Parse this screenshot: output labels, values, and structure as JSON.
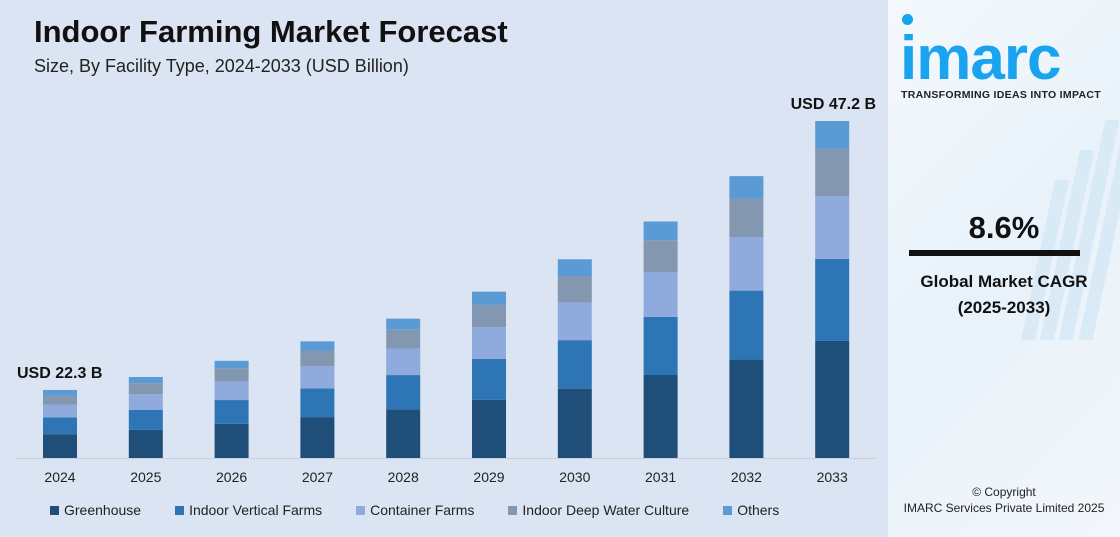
{
  "header": {
    "title": "Indoor Farming Market Forecast",
    "subtitle": "Size, By Facility Type, 2024-2033 (USD Billion)"
  },
  "chart_data": {
    "type": "bar",
    "stacked": true,
    "title": "Indoor Farming Market Forecast",
    "subtitle": "Size, By Facility Type, 2024-2033 (USD Billion)",
    "categories": [
      "2024",
      "2025",
      "2026",
      "2027",
      "2028",
      "2029",
      "2030",
      "2031",
      "2032",
      "2033"
    ],
    "series": [
      {
        "name": "Greenhouse",
        "color": "#1f4e79",
        "values": [
          7.8,
          8.2,
          8.8,
          9.4,
          10.1,
          11.0,
          12.0,
          13.3,
          14.7,
          16.4
        ]
      },
      {
        "name": "Indoor Vertical Farms",
        "color": "#2e75b6",
        "values": [
          5.5,
          5.8,
          6.1,
          6.6,
          7.1,
          7.7,
          8.4,
          9.3,
          10.3,
          11.5
        ]
      },
      {
        "name": "Container Farms",
        "color": "#8faadc",
        "values": [
          4.2,
          4.5,
          4.8,
          5.1,
          5.5,
          6.0,
          6.5,
          7.2,
          8.0,
          8.8
        ]
      },
      {
        "name": "Indoor Deep Water Culture",
        "color": "#8497b0",
        "values": [
          3.0,
          3.2,
          3.4,
          3.6,
          3.9,
          4.2,
          4.6,
          5.1,
          5.7,
          6.6
        ]
      },
      {
        "name": "Others",
        "color": "#5b9bd5",
        "values": [
          1.8,
          1.8,
          1.9,
          2.1,
          2.3,
          2.5,
          2.9,
          3.0,
          3.4,
          3.9
        ]
      }
    ],
    "annotations": [
      {
        "category": "2024",
        "text": "USD 22.3 B"
      },
      {
        "category": "2033",
        "text": "USD 47.2 B"
      }
    ],
    "legend_position": "bottom",
    "grid": false
  },
  "side": {
    "logo": "imarc",
    "tagline": "TRANSFORMING IDEAS INTO IMPACT",
    "cagr_value": "8.6%",
    "cagr_label": "Global Market CAGR",
    "cagr_period": "(2025-2033)",
    "copyright": "© Copyright",
    "company": "IMARC Services Private Limited 2025"
  }
}
